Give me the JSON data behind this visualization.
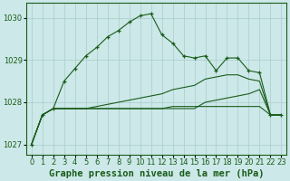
{
  "title": "Graphe pression niveau de la mer (hPa)",
  "bg_color": "#cce8e8",
  "grid_color": "#aacccc",
  "line_color": "#1a5c1a",
  "x_labels": [
    "0",
    "1",
    "2",
    "3",
    "4",
    "5",
    "6",
    "7",
    "8",
    "9",
    "10",
    "11",
    "12",
    "13",
    "14",
    "15",
    "16",
    "17",
    "18",
    "19",
    "20",
    "21",
    "22",
    "23"
  ],
  "hours": [
    0,
    1,
    2,
    3,
    4,
    5,
    6,
    7,
    8,
    9,
    10,
    11,
    12,
    13,
    14,
    15,
    16,
    17,
    18,
    19,
    20,
    21,
    22,
    23
  ],
  "main_line": [
    1027.0,
    1027.7,
    1027.85,
    1028.5,
    1028.8,
    1029.1,
    1029.3,
    1029.55,
    1029.7,
    1029.9,
    1030.05,
    1030.1,
    1029.6,
    1029.4,
    1029.1,
    1029.05,
    1029.1,
    1028.75,
    1029.05,
    1029.05,
    1028.75,
    1028.7,
    1027.7,
    1027.7
  ],
  "line_upper": [
    1027.0,
    1027.7,
    1027.85,
    1027.85,
    1027.85,
    1027.85,
    1027.9,
    1027.95,
    1028.0,
    1028.05,
    1028.1,
    1028.15,
    1028.2,
    1028.3,
    1028.35,
    1028.4,
    1028.55,
    1028.6,
    1028.65,
    1028.65,
    1028.55,
    1028.5,
    1027.7,
    1027.7
  ],
  "line_mid": [
    1027.0,
    1027.7,
    1027.85,
    1027.85,
    1027.85,
    1027.85,
    1027.85,
    1027.85,
    1027.85,
    1027.85,
    1027.85,
    1027.85,
    1027.85,
    1027.9,
    1027.9,
    1027.9,
    1027.9,
    1027.9,
    1027.9,
    1027.9,
    1027.9,
    1027.9,
    1027.7,
    1027.7
  ],
  "line_lower": [
    1027.0,
    1027.7,
    1027.85,
    1027.85,
    1027.85,
    1027.85,
    1027.85,
    1027.85,
    1027.85,
    1027.85,
    1027.85,
    1027.85,
    1027.85,
    1027.85,
    1027.85,
    1027.85,
    1028.0,
    1028.05,
    1028.1,
    1028.15,
    1028.2,
    1028.3,
    1027.7,
    1027.7
  ],
  "ylim": [
    1026.75,
    1030.35
  ],
  "yticks": [
    1027,
    1028,
    1029,
    1030
  ],
  "title_fontsize": 7.5,
  "tick_fontsize": 6
}
